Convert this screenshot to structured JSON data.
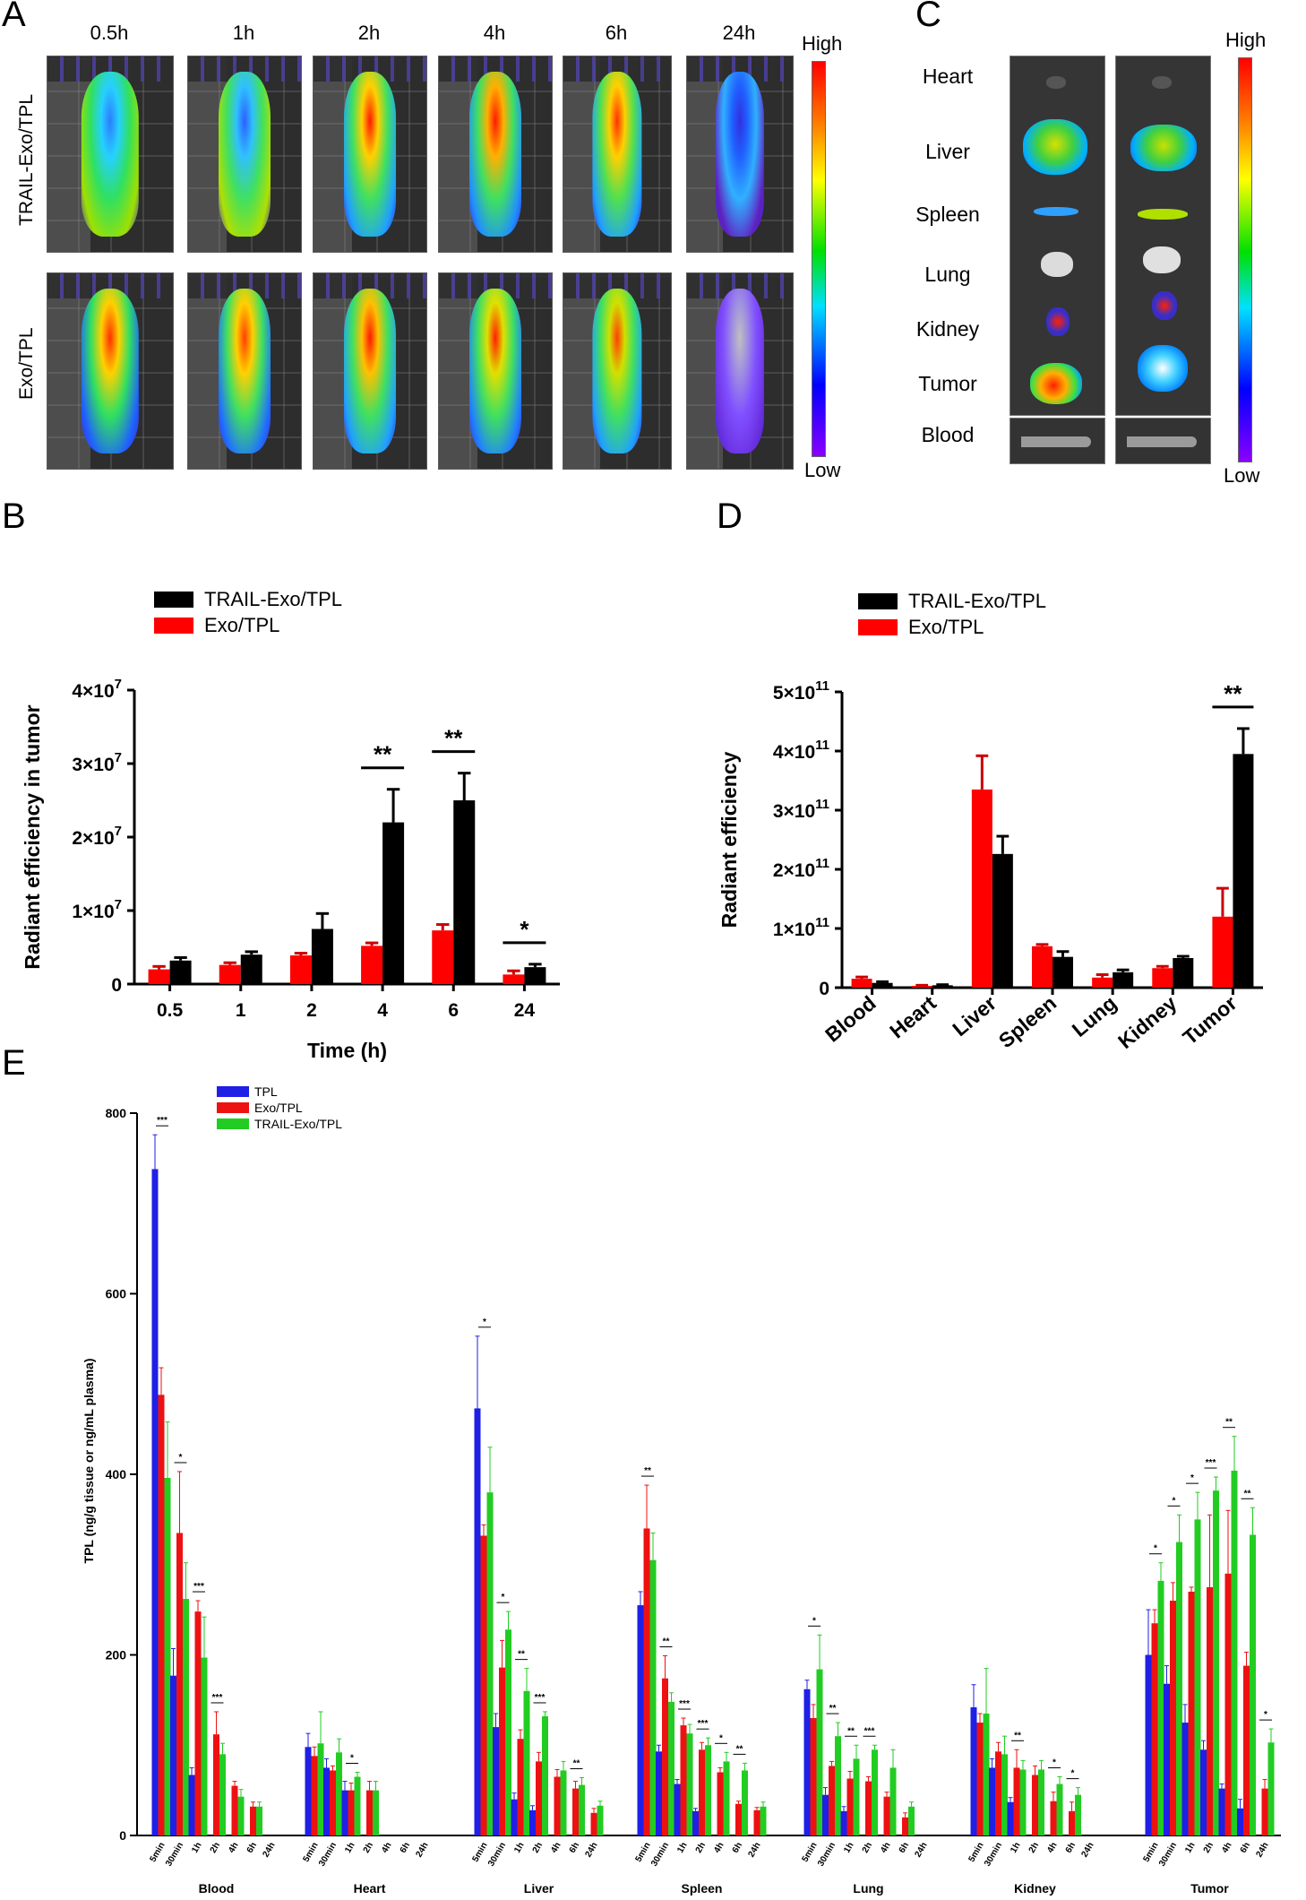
{
  "panel_a": {
    "letter": "A",
    "times": [
      "0.5h",
      "1h",
      "2h",
      "4h",
      "6h",
      "24h"
    ],
    "rows": [
      "TRAIL-Exo/TPL",
      "Exo/TPL"
    ],
    "colorbar": {
      "high": "High",
      "low": "Low"
    }
  },
  "panel_c": {
    "letter": "C",
    "organs": [
      "Heart",
      "Liver",
      "Spleen",
      "Lung",
      "Kidney",
      "Tumor",
      "Blood"
    ],
    "colorbar": {
      "high": "High",
      "low": "Low"
    }
  },
  "panel_b": {
    "letter": "B"
  },
  "panel_d": {
    "letter": "D"
  },
  "panel_e": {
    "letter": "E"
  },
  "chart_data": [
    {
      "id": "B",
      "type": "bar",
      "xlabel": "Time (h)",
      "ylabel": "Radiant efficiency in tumor",
      "categories": [
        "0.5",
        "1",
        "2",
        "4",
        "6",
        "24"
      ],
      "ylim": [
        0,
        40000000
      ],
      "yticks": [
        {
          "value": 0,
          "label": "0"
        },
        {
          "value": 10000000,
          "label": "1×10",
          "sup": "7"
        },
        {
          "value": 20000000,
          "label": "2×10",
          "sup": "7"
        },
        {
          "value": 30000000,
          "label": "3×10",
          "sup": "7"
        },
        {
          "value": 40000000,
          "label": "4×10",
          "sup": "7"
        }
      ],
      "legend_position": "top-left",
      "series": [
        {
          "name": "Exo/TPL",
          "color": "#ff0000",
          "values": [
            2000000,
            2600000,
            3900000,
            5200000,
            7300000,
            1300000
          ],
          "errors": [
            400000,
            300000,
            300000,
            400000,
            800000,
            500000
          ]
        },
        {
          "name": "TRAIL-Exo/TPL",
          "color": "#000000",
          "values": [
            3200000,
            4000000,
            7500000,
            22000000,
            25000000,
            2300000
          ],
          "errors": [
            400000,
            400000,
            2100000,
            4500000,
            3700000,
            400000
          ]
        }
      ],
      "significance": [
        {
          "index": 3,
          "label": "**"
        },
        {
          "index": 4,
          "label": "**"
        },
        {
          "index": 5,
          "label": "*"
        }
      ]
    },
    {
      "id": "D",
      "type": "bar",
      "ylabel": "Radiant efficiency",
      "categories": [
        "Blood",
        "Heart",
        "Liver",
        "Spleen",
        "Lung",
        "Kidney",
        "Tumor"
      ],
      "ylim": [
        0,
        500000000000
      ],
      "yticks": [
        {
          "value": 0,
          "label": "0"
        },
        {
          "value": 100000000000,
          "label": "1×10",
          "sup": "11"
        },
        {
          "value": 200000000000,
          "label": "2×10",
          "sup": "11"
        },
        {
          "value": 300000000000,
          "label": "3×10",
          "sup": "11"
        },
        {
          "value": 400000000000,
          "label": "4×10",
          "sup": "11"
        },
        {
          "value": 500000000000,
          "label": "5×10",
          "sup": "11"
        }
      ],
      "legend_position": "top-left",
      "series": [
        {
          "name": "Exo/TPL",
          "color": "#ff0000",
          "values": [
            15000000000,
            3000000000,
            335000000000,
            70000000000,
            17000000000,
            33000000000,
            120000000000
          ],
          "errors": [
            3000000000,
            1000000000,
            57000000000,
            3000000000,
            5000000000,
            3000000000,
            48000000000
          ]
        },
        {
          "name": "TRAIL-Exo/TPL",
          "color": "#000000",
          "values": [
            8000000000,
            4000000000,
            226000000000,
            52000000000,
            26000000000,
            50000000000,
            395000000000
          ],
          "errors": [
            2000000000,
            1000000000,
            30000000000,
            9000000000,
            4000000000,
            3000000000,
            43000000000
          ]
        }
      ],
      "significance": [
        {
          "index": 6,
          "label": "**"
        }
      ]
    },
    {
      "id": "E",
      "type": "bar",
      "ylabel": "TPL (ng/g tissue or ng/mL plasma)",
      "ylim": [
        0,
        800
      ],
      "yticks": [
        0,
        200,
        400,
        600,
        800
      ],
      "legend_position": "top-left",
      "timepoints": [
        "5min",
        "30min",
        "1h",
        "2h",
        "4h",
        "6h",
        "24h"
      ],
      "groups": [
        "Blood",
        "Heart",
        "Liver",
        "Spleen",
        "Lung",
        "Kidney",
        "Tumor"
      ],
      "series": [
        {
          "name": "TPL",
          "color": "#1f1fe6",
          "values": [
            [
              738,
              177,
              67,
              0,
              0,
              0,
              0
            ],
            [
              98,
              75,
              50,
              0,
              0,
              0,
              0
            ],
            [
              473,
              120,
              40,
              28,
              0,
              0,
              0
            ],
            [
              255,
              93,
              57,
              27,
              0,
              0,
              0
            ],
            [
              162,
              45,
              27,
              0,
              0,
              0,
              0
            ],
            [
              142,
              75,
              37,
              0,
              0,
              0,
              0
            ],
            [
              200,
              168,
              125,
              95,
              52,
              30,
              0
            ]
          ]
        },
        {
          "name": "Exo/TPL",
          "color": "#ee1111",
          "values": [
            [
              488,
              335,
              248,
              112,
              55,
              32,
              0
            ],
            [
              88,
              72,
              50,
              50,
              0,
              0,
              0
            ],
            [
              332,
              186,
              107,
              82,
              65,
              52,
              25
            ],
            [
              340,
              174,
              122,
              95,
              70,
              35,
              28
            ],
            [
              130,
              77,
              63,
              60,
              43,
              20,
              0
            ],
            [
              125,
              93,
              75,
              67,
              38,
              27,
              0
            ],
            [
              235,
              260,
              270,
              275,
              290,
              188,
              52
            ]
          ]
        },
        {
          "name": "TRAIL-Exo/TPL",
          "color": "#22cc22",
          "values": [
            [
              396,
              262,
              197,
              90,
              43,
              32,
              0
            ],
            [
              102,
              92,
              65,
              50,
              0,
              0,
              0
            ],
            [
              380,
              228,
              160,
              132,
              72,
              56,
              33
            ],
            [
              305,
              148,
              113,
              100,
              82,
              72,
              32
            ],
            [
              184,
              110,
              85,
              95,
              75,
              32,
              0
            ],
            [
              135,
              90,
              73,
              73,
              57,
              45,
              0
            ],
            [
              282,
              325,
              350,
              382,
              404,
              333,
              103
            ]
          ]
        }
      ],
      "errors": [
        [
          [
            38,
            30,
            8,
            0,
            0,
            0,
            0
          ],
          [
            15,
            10,
            10,
            0,
            0,
            0,
            0
          ],
          [
            80,
            15,
            7,
            5,
            0,
            0,
            0
          ],
          [
            15,
            7,
            5,
            3,
            0,
            0,
            0
          ],
          [
            10,
            8,
            5,
            0,
            0,
            0,
            0
          ],
          [
            25,
            10,
            5,
            0,
            0,
            0,
            0
          ],
          [
            50,
            20,
            20,
            10,
            5,
            10,
            0
          ]
        ],
        [
          [
            30,
            68,
            12,
            25,
            5,
            5,
            0
          ],
          [
            10,
            5,
            8,
            10,
            0,
            0,
            0
          ],
          [
            12,
            30,
            10,
            10,
            8,
            8,
            5
          ],
          [
            48,
            25,
            8,
            8,
            5,
            3,
            3
          ],
          [
            15,
            5,
            8,
            5,
            5,
            5,
            0
          ],
          [
            10,
            10,
            20,
            10,
            10,
            10,
            0
          ],
          [
            15,
            20,
            5,
            80,
            70,
            15,
            10
          ]
        ],
        [
          [
            62,
            40,
            45,
            12,
            8,
            5,
            0
          ],
          [
            35,
            15,
            5,
            10,
            0,
            0,
            0
          ],
          [
            50,
            20,
            25,
            5,
            10,
            8,
            5
          ],
          [
            30,
            10,
            10,
            8,
            10,
            8,
            5
          ],
          [
            38,
            15,
            15,
            5,
            20,
            5,
            0
          ],
          [
            50,
            20,
            10,
            10,
            8,
            8,
            0
          ],
          [
            20,
            30,
            30,
            15,
            38,
            30,
            15
          ]
        ]
      ],
      "significance": [
        [
          "***",
          "*",
          "***",
          "***",
          "",
          "",
          ""
        ],
        [
          "",
          "",
          "*",
          "",
          "",
          "",
          ""
        ],
        [
          "*",
          "*",
          "**",
          "***",
          "",
          "**",
          ""
        ],
        [
          "**",
          "**",
          "***",
          "***",
          "*",
          "**",
          ""
        ],
        [
          "*",
          "**",
          "**",
          "***",
          "",
          "",
          ""
        ],
        [
          "",
          "",
          "**",
          "",
          "*",
          "*",
          ""
        ],
        [
          "*",
          "*",
          "*",
          "***",
          "**",
          "**",
          "*"
        ]
      ]
    }
  ]
}
